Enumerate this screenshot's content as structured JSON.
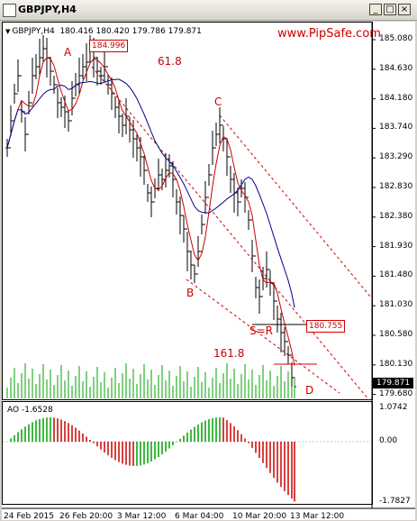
{
  "window": {
    "title": "GBPJPY,H4",
    "min_label": "_",
    "max_label": "□",
    "close_label": "×"
  },
  "header": {
    "symbol": "GBPJPY,H4",
    "ohlc": "180.416 180.420 179.786 179.871"
  },
  "watermark": "www.PipSafe.com",
  "annotations": {
    "A": "A",
    "B": "B",
    "C": "C",
    "D": "D",
    "SR": "S=R",
    "fib618": "61.8",
    "fib1618": "161.8"
  },
  "price_boxes": {
    "top": "184.996",
    "sr": "180.755",
    "current": "179.871"
  },
  "y_ticks": [
    "185.080",
    "184.630",
    "184.180",
    "183.740",
    "183.290",
    "182.830",
    "182.380",
    "181.930",
    "181.480",
    "181.030",
    "180.580",
    "180.130",
    "179.680"
  ],
  "x_ticks": [
    "24 Feb 2015",
    "26 Feb 20:00",
    "3 Mar 12:00",
    "6 Mar 04:00",
    "10 Mar 20:00",
    "13 Mar 12:00"
  ],
  "ao": {
    "label": "AO -1.6528",
    "ticks": [
      "1.0742",
      "0.00",
      "-1.7827"
    ]
  },
  "colors": {
    "up_bar": "#00a000",
    "down_bar": "#cc0000",
    "red_ma": "#cc0000",
    "blue_ma": "#00008b",
    "channel": "#cc0000"
  }
}
